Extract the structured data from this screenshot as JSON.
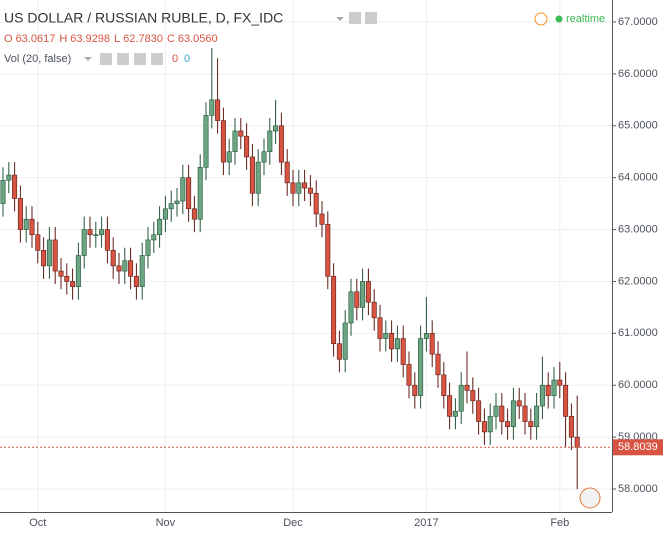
{
  "header": {
    "title": "US DOLLAR / RUSSIAN RUBLE, D, FX_IDC",
    "ohlc": [
      {
        "key": "O",
        "value": "63.0617"
      },
      {
        "key": "H",
        "value": "63.9298"
      },
      {
        "key": "L",
        "value": "62.7830"
      },
      {
        "key": "C",
        "value": "63.0560"
      }
    ],
    "volume": {
      "label": "Vol (20, false)",
      "values": [
        "0",
        "0"
      ]
    },
    "status": "realtime"
  },
  "chart_data": {
    "type": "candlestick",
    "categories": [
      null,
      null,
      null,
      null,
      null,
      null,
      "Oct",
      null,
      null,
      null,
      null,
      null,
      null,
      null,
      null,
      null,
      null,
      null,
      null,
      null,
      null,
      null,
      null,
      null,
      null,
      null,
      null,
      null,
      "Nov",
      null,
      null,
      null,
      null,
      null,
      null,
      null,
      null,
      null,
      null,
      null,
      null,
      null,
      null,
      null,
      null,
      null,
      null,
      null,
      null,
      null,
      "Dec",
      null,
      null,
      null,
      null,
      null,
      null,
      null,
      null,
      null,
      null,
      null,
      null,
      null,
      null,
      null,
      null,
      null,
      null,
      null,
      null,
      null,
      null,
      "2017",
      null,
      null,
      null,
      null,
      null,
      null,
      null,
      null,
      null,
      null,
      null,
      null,
      null,
      null,
      null,
      null,
      null,
      null,
      null,
      null,
      null,
      null,
      "Feb",
      null,
      null,
      null
    ],
    "open": [
      63.5,
      63.95,
      64.05,
      63.6,
      63.0,
      63.2,
      62.9,
      62.6,
      62.3,
      62.8,
      62.2,
      62.1,
      62.0,
      61.9,
      62.5,
      63.0,
      62.9,
      62.9,
      63.0,
      62.6,
      62.3,
      62.2,
      62.4,
      62.1,
      61.9,
      62.5,
      62.8,
      62.9,
      63.2,
      63.4,
      63.5,
      63.55,
      64.0,
      63.4,
      63.2,
      64.2,
      65.2,
      65.5,
      65.1,
      64.3,
      64.5,
      64.9,
      64.8,
      64.4,
      63.7,
      64.3,
      64.5,
      64.9,
      65.0,
      64.3,
      63.9,
      63.7,
      63.9,
      63.8,
      63.7,
      63.3,
      63.1,
      62.1,
      60.8,
      60.5,
      61.2,
      61.8,
      61.5,
      62.0,
      61.6,
      61.3,
      60.9,
      61.0,
      60.7,
      60.9,
      60.4,
      60.0,
      59.8,
      60.9,
      61.0,
      60.6,
      60.2,
      59.8,
      59.4,
      59.5,
      60.0,
      59.9,
      59.7,
      59.3,
      59.1,
      59.4,
      59.6,
      59.3,
      59.2,
      59.7,
      59.6,
      59.3,
      59.2,
      59.6,
      60.0,
      59.8,
      60.1,
      60.0,
      59.4,
      59.0
    ],
    "high": [
      64.2,
      64.3,
      64.3,
      63.85,
      63.45,
      63.45,
      63.15,
      62.85,
      63.05,
      63.05,
      62.45,
      62.35,
      62.25,
      62.75,
      63.25,
      63.25,
      63.15,
      63.25,
      63.25,
      62.85,
      62.55,
      62.65,
      62.65,
      62.35,
      62.75,
      63.05,
      63.15,
      63.45,
      63.65,
      63.75,
      63.8,
      64.25,
      64.25,
      63.65,
      64.45,
      65.45,
      66.5,
      66.3,
      65.35,
      64.75,
      65.15,
      65.15,
      65.05,
      64.65,
      64.55,
      64.75,
      65.15,
      65.5,
      65.25,
      64.55,
      64.15,
      64.15,
      64.15,
      64.05,
      63.95,
      63.55,
      63.35,
      62.35,
      61.05,
      61.45,
      62.05,
      62.05,
      62.25,
      62.25,
      61.85,
      61.55,
      61.25,
      61.25,
      61.15,
      61.15,
      60.65,
      60.25,
      61.15,
      61.7,
      61.25,
      60.85,
      60.45,
      60.05,
      59.75,
      60.25,
      60.65,
      60.15,
      59.95,
      59.55,
      59.65,
      59.85,
      59.85,
      59.55,
      59.95,
      59.95,
      59.85,
      59.55,
      59.85,
      60.55,
      60.25,
      60.35,
      60.45,
      60.25,
      59.65,
      59.8
    ],
    "low": [
      63.25,
      63.7,
      63.35,
      62.75,
      62.75,
      62.65,
      62.35,
      62.05,
      62.05,
      61.95,
      61.85,
      61.75,
      61.65,
      61.65,
      62.25,
      62.65,
      62.65,
      62.65,
      62.35,
      62.05,
      61.95,
      61.95,
      61.85,
      61.65,
      61.65,
      62.25,
      62.55,
      62.65,
      62.95,
      63.15,
      63.25,
      63.3,
      63.15,
      62.95,
      62.95,
      63.95,
      64.95,
      64.85,
      64.05,
      64.05,
      64.25,
      64.55,
      64.15,
      63.45,
      63.45,
      64.05,
      64.25,
      64.65,
      64.05,
      63.65,
      63.45,
      63.45,
      63.55,
      63.45,
      63.05,
      62.85,
      61.85,
      60.55,
      60.25,
      60.25,
      60.95,
      61.25,
      61.25,
      61.35,
      61.05,
      60.65,
      60.65,
      60.45,
      60.45,
      60.15,
      59.75,
      59.55,
      59.55,
      60.65,
      60.35,
      59.95,
      59.55,
      59.15,
      59.15,
      59.25,
      59.65,
      59.45,
      59.05,
      58.85,
      58.85,
      59.15,
      59.05,
      58.95,
      58.95,
      59.35,
      59.05,
      58.95,
      58.95,
      59.35,
      59.55,
      59.55,
      59.75,
      58.8,
      58.75,
      58.0
    ],
    "close": [
      63.95,
      64.05,
      63.6,
      63.0,
      63.2,
      62.9,
      62.6,
      62.3,
      62.8,
      62.2,
      62.1,
      62.0,
      61.9,
      62.5,
      63.0,
      62.9,
      62.9,
      63.0,
      62.6,
      62.3,
      62.2,
      62.4,
      62.1,
      61.9,
      62.5,
      62.8,
      62.9,
      63.2,
      63.4,
      63.5,
      63.55,
      64.0,
      63.4,
      63.2,
      64.2,
      65.2,
      65.5,
      65.1,
      64.3,
      64.5,
      64.9,
      64.8,
      64.4,
      63.7,
      64.3,
      64.5,
      64.9,
      65.0,
      64.3,
      63.9,
      63.7,
      63.9,
      63.8,
      63.7,
      63.3,
      63.1,
      62.1,
      60.8,
      60.5,
      61.2,
      61.8,
      61.5,
      62.0,
      61.6,
      61.3,
      60.9,
      61.0,
      60.7,
      60.9,
      60.4,
      60.0,
      59.8,
      60.9,
      61.0,
      60.6,
      60.2,
      59.8,
      59.4,
      59.5,
      60.0,
      59.9,
      59.7,
      59.3,
      59.1,
      59.4,
      59.6,
      59.3,
      59.2,
      59.7,
      59.6,
      59.3,
      59.2,
      59.6,
      60.0,
      59.8,
      60.1,
      60.0,
      59.4,
      59.0,
      58.8039
    ],
    "up_color": "#6ba583",
    "down_color": "#d75442",
    "up_border": "#225437",
    "down_border": "#5b1a13",
    "ylim": [
      57.557,
      67.424
    ],
    "yticks": [
      {
        "value": 58,
        "label": "58.0000"
      },
      {
        "value": 59,
        "label": "59.0000"
      },
      {
        "value": 60,
        "label": "60.0000"
      },
      {
        "value": 61,
        "label": "61.0000"
      },
      {
        "value": 62,
        "label": "62.0000"
      },
      {
        "value": 63,
        "label": "63.0000"
      },
      {
        "value": 64,
        "label": "64.0000"
      },
      {
        "value": 65,
        "label": "65.0000"
      },
      {
        "value": 66,
        "label": "66.0000"
      },
      {
        "value": 67,
        "label": "67.0000"
      }
    ],
    "grid": true
  }
}
